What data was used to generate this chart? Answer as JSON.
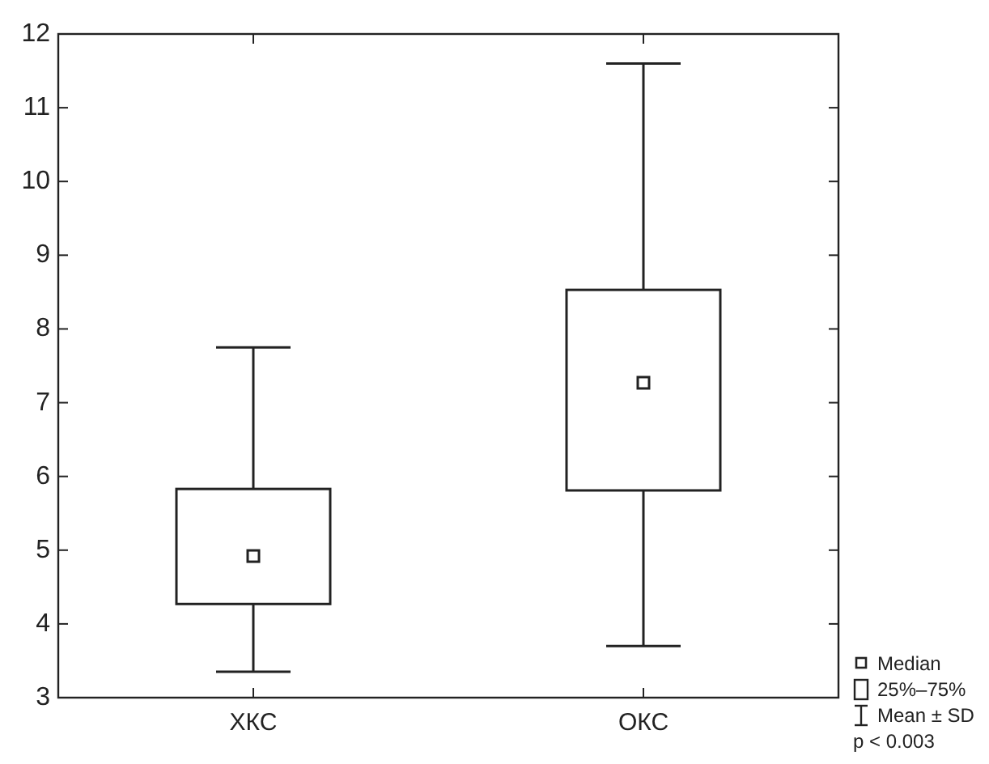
{
  "chart_data": {
    "type": "box",
    "categories": [
      "ХКС",
      "ОКС"
    ],
    "boxes": [
      {
        "low": 3.35,
        "q1": 4.27,
        "median": 4.92,
        "q3": 5.83,
        "high": 7.75
      },
      {
        "low": 3.7,
        "q1": 5.81,
        "median": 7.27,
        "q3": 8.53,
        "high": 11.6
      }
    ],
    "ylim": [
      3,
      12
    ],
    "yticks": [
      3,
      4,
      5,
      6,
      7,
      8,
      9,
      10,
      11,
      12
    ],
    "grid": false,
    "annotations": [
      "Median",
      "25%–75%",
      "Mean ± SD",
      "p < 0.003"
    ]
  }
}
